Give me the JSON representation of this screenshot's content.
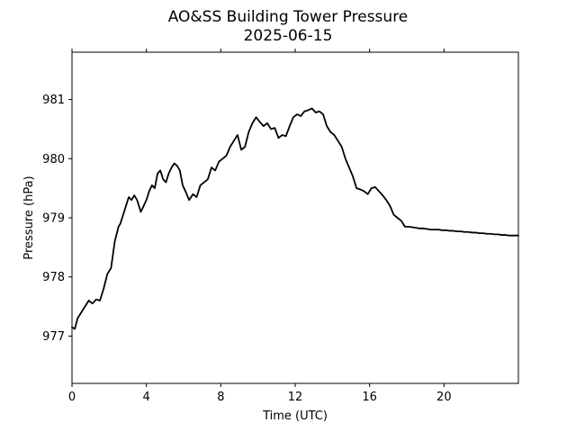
{
  "chart_data": {
    "type": "line",
    "title": "AO&SS Building Tower Pressure",
    "subtitle": "2025-06-15",
    "xlabel": "Time (UTC)",
    "ylabel": "Pressure (hPa)",
    "xlim": [
      0,
      24
    ],
    "ylim": [
      976.2,
      981.8
    ],
    "x_ticks": [
      0,
      4,
      8,
      12,
      16,
      20
    ],
    "x_tick_labels": [
      "0",
      "4",
      "8",
      "12",
      "16",
      "20"
    ],
    "y_ticks": [
      977,
      978,
      979,
      980,
      981
    ],
    "y_tick_labels": [
      "977",
      "978",
      "979",
      "980",
      "981"
    ],
    "grid": false,
    "line_color": "#000000",
    "series": [
      {
        "x": [
          0,
          0.15,
          0.3,
          0.5,
          0.7,
          0.9,
          1.1,
          1.3,
          1.5,
          1.7,
          1.9,
          2.1,
          2.3,
          2.5,
          2.6,
          2.75,
          2.9,
          3.05,
          3.2,
          3.35,
          3.5,
          3.7,
          3.85,
          4.0,
          4.15,
          4.3,
          4.45,
          4.6,
          4.75,
          4.9,
          5.05,
          5.2,
          5.35,
          5.5,
          5.65,
          5.8,
          5.95,
          6.1,
          6.3,
          6.5,
          6.7,
          6.9,
          7.1,
          7.3,
          7.5,
          7.7,
          7.9,
          8.1,
          8.3,
          8.5,
          8.7,
          8.9,
          9.1,
          9.3,
          9.5,
          9.7,
          9.9,
          10.1,
          10.3,
          10.5,
          10.7,
          10.9,
          11.1,
          11.3,
          11.5,
          11.7,
          11.9,
          12.1,
          12.3,
          12.5,
          12.7,
          12.9,
          13.1,
          13.3,
          13.5,
          13.7,
          13.9,
          14.1,
          14.3,
          14.5,
          14.7,
          14.9,
          15.1,
          15.3,
          15.5,
          15.7,
          15.9,
          16.1,
          16.3,
          16.5,
          16.7,
          16.9,
          17.1,
          17.3,
          17.5,
          17.7,
          17.9,
          18.1,
          18.3,
          18.5,
          18.7,
          18.9,
          19.1,
          19.3,
          19.5,
          19.7,
          19.9,
          20.1,
          20.3,
          20.5,
          20.7,
          20.9,
          21.1,
          21.3,
          21.5,
          21.7,
          21.9,
          22.1,
          22.3,
          22.5,
          22.7,
          22.9,
          23.1,
          23.3,
          23.5,
          23.7,
          23.9,
          24.0
        ],
        "y": [
          977.15,
          977.12,
          977.3,
          977.4,
          977.5,
          977.6,
          977.55,
          977.62,
          977.6,
          977.8,
          978.05,
          978.15,
          978.6,
          978.85,
          978.9,
          979.05,
          979.2,
          979.35,
          979.3,
          979.38,
          979.3,
          979.1,
          979.2,
          979.3,
          979.45,
          979.55,
          979.5,
          979.75,
          979.8,
          979.65,
          979.6,
          979.75,
          979.85,
          979.92,
          979.88,
          979.8,
          979.55,
          979.45,
          979.3,
          979.4,
          979.35,
          979.55,
          979.6,
          979.65,
          979.85,
          979.8,
          979.95,
          980.0,
          980.05,
          980.2,
          980.3,
          980.4,
          980.15,
          980.2,
          980.45,
          980.6,
          980.7,
          980.62,
          980.55,
          980.6,
          980.5,
          980.52,
          980.35,
          980.4,
          980.38,
          980.55,
          980.7,
          980.75,
          980.72,
          980.8,
          980.82,
          980.85,
          980.78,
          980.8,
          980.75,
          980.55,
          980.45,
          980.4,
          980.3,
          980.2,
          980.0,
          979.85,
          979.7,
          979.5,
          979.48,
          979.45,
          979.4,
          979.5,
          979.52,
          979.45,
          979.38,
          979.3,
          979.2,
          979.05,
          979.0,
          978.95,
          978.85,
          978.85,
          978.84,
          978.83,
          978.82,
          978.82,
          978.81,
          978.8,
          978.8,
          978.8,
          978.79,
          978.79,
          978.78,
          978.78,
          978.77,
          978.77,
          978.76,
          978.76,
          978.75,
          978.75,
          978.74,
          978.74,
          978.73,
          978.73,
          978.72,
          978.72,
          978.71,
          978.71,
          978.7,
          978.7,
          978.7,
          978.7
        ]
      }
    ]
  }
}
